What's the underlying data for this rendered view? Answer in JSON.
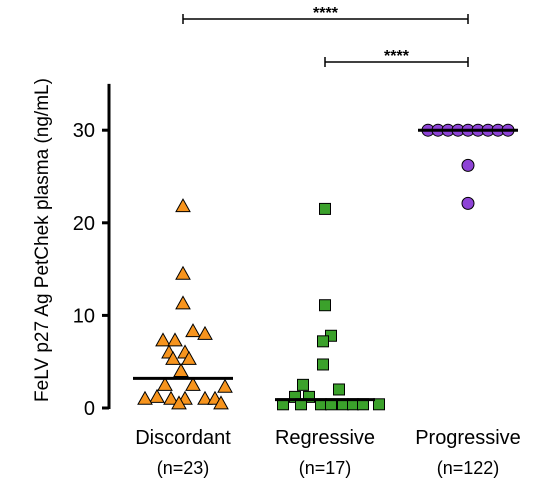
{
  "chart_data": {
    "type": "scatter",
    "title": "",
    "xlabel": "",
    "ylabel": "FeLV p27 Ag PetChek plasma (ng/mL)",
    "ylim": [
      0,
      35
    ],
    "yticks": [
      0,
      10,
      20,
      30
    ],
    "grid": false,
    "legend": "none",
    "categories": [
      {
        "name": "Discordant",
        "n_label": "(n=23)",
        "marker": "triangle",
        "color": "#F7941D"
      },
      {
        "name": "Regressive",
        "n_label": "(n=17)",
        "marker": "square",
        "color": "#3BA12B"
      },
      {
        "name": "Progressive",
        "n_label": "(n=122)",
        "marker": "circle",
        "color": "#8E44D6"
      }
    ],
    "series": [
      {
        "category": "Discordant",
        "median": 3.2,
        "points": [
          {
            "dx": 0,
            "y": 21.8
          },
          {
            "dx": 0,
            "y": 14.5
          },
          {
            "dx": 0,
            "y": 11.3
          },
          {
            "dx": 10,
            "y": 8.3
          },
          {
            "dx": 22,
            "y": 8.0
          },
          {
            "dx": -20,
            "y": 7.3
          },
          {
            "dx": -8,
            "y": 7.3
          },
          {
            "dx": -14,
            "y": 6.0
          },
          {
            "dx": 2,
            "y": 6.0
          },
          {
            "dx": -10,
            "y": 5.3
          },
          {
            "dx": 6,
            "y": 5.3
          },
          {
            "dx": -2,
            "y": 4.0
          },
          {
            "dx": -18,
            "y": 2.5
          },
          {
            "dx": 10,
            "y": 2.5
          },
          {
            "dx": 42,
            "y": 2.3
          },
          {
            "dx": -26,
            "y": 1.2
          },
          {
            "dx": -38,
            "y": 1.0
          },
          {
            "dx": -12,
            "y": 1.0
          },
          {
            "dx": 2,
            "y": 1.0
          },
          {
            "dx": 22,
            "y": 1.0
          },
          {
            "dx": 32,
            "y": 1.0
          },
          {
            "dx": -4,
            "y": 0.5
          },
          {
            "dx": 38,
            "y": 0.5
          }
        ]
      },
      {
        "category": "Regressive",
        "median": 0.9,
        "points": [
          {
            "dx": 0,
            "y": 21.5
          },
          {
            "dx": 0,
            "y": 11.1
          },
          {
            "dx": 6,
            "y": 7.8
          },
          {
            "dx": -2,
            "y": 7.2
          },
          {
            "dx": -2,
            "y": 4.7
          },
          {
            "dx": -22,
            "y": 2.5
          },
          {
            "dx": 14,
            "y": 2.0
          },
          {
            "dx": -30,
            "y": 1.2
          },
          {
            "dx": -16,
            "y": 1.2
          },
          {
            "dx": -42,
            "y": 0.4
          },
          {
            "dx": -24,
            "y": 0.4
          },
          {
            "dx": -4,
            "y": 0.4
          },
          {
            "dx": 6,
            "y": 0.4
          },
          {
            "dx": 18,
            "y": 0.4
          },
          {
            "dx": 28,
            "y": 0.4
          },
          {
            "dx": 38,
            "y": 0.4
          },
          {
            "dx": 54,
            "y": 0.4
          }
        ]
      },
      {
        "category": "Progressive",
        "median": 30,
        "points": [
          {
            "dx": -40,
            "y": 30
          },
          {
            "dx": -30,
            "y": 30
          },
          {
            "dx": -20,
            "y": 30
          },
          {
            "dx": -10,
            "y": 30
          },
          {
            "dx": 0,
            "y": 30
          },
          {
            "dx": 10,
            "y": 30
          },
          {
            "dx": 20,
            "y": 30
          },
          {
            "dx": 30,
            "y": 30
          },
          {
            "dx": 40,
            "y": 30
          },
          {
            "dx": 0,
            "y": 26.2
          },
          {
            "dx": 0,
            "y": 22.1
          }
        ]
      }
    ],
    "significance": [
      {
        "from": "Discordant",
        "to": "Progressive",
        "label": "****"
      },
      {
        "from": "Regressive",
        "to": "Progressive",
        "label": "****"
      }
    ]
  }
}
